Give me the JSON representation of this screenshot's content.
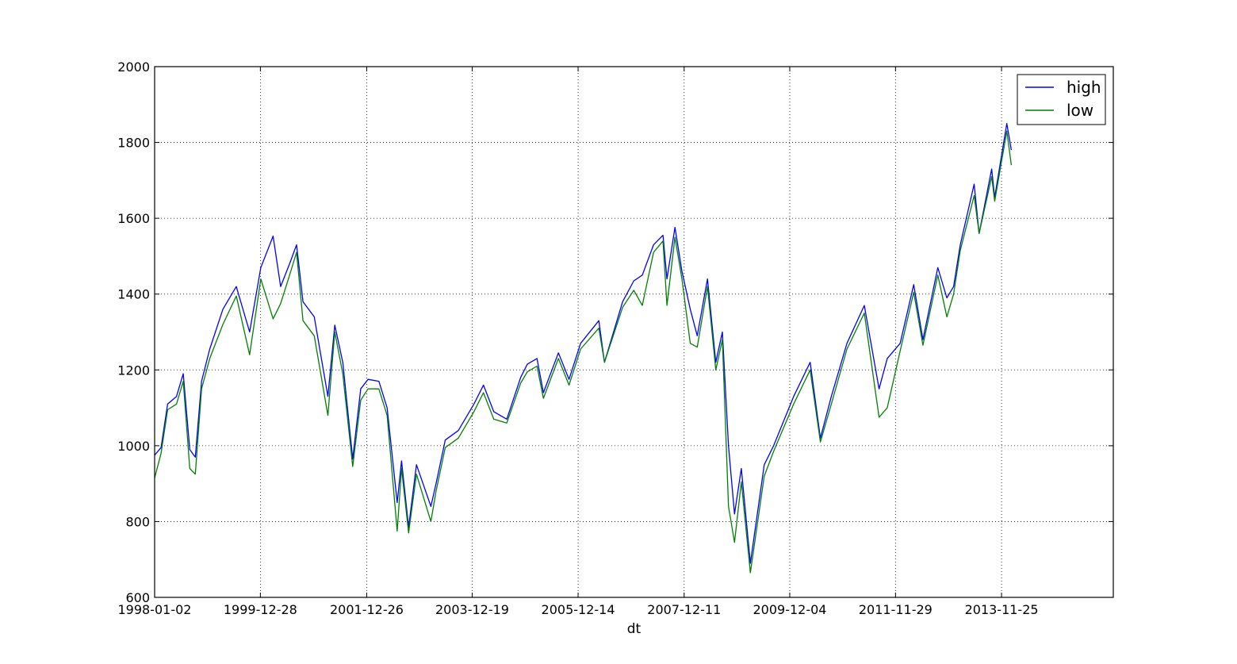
{
  "chart_data": {
    "type": "line",
    "xlabel": "dt",
    "ylabel": "",
    "title": "",
    "xlim": [
      "1998-01-02",
      "2015-12-31"
    ],
    "ylim": [
      600,
      2000
    ],
    "grid": true,
    "legend_position": "top-right",
    "x_tick_labels": [
      "1998-01-02",
      "1999-12-28",
      "2001-12-26",
      "2003-12-19",
      "2005-12-14",
      "2007-12-11",
      "2009-12-04",
      "2011-11-29",
      "2013-11-25"
    ],
    "y_ticks": [
      600,
      800,
      1000,
      1200,
      1400,
      1600,
      1800,
      2000
    ],
    "series": [
      {
        "name": "high",
        "color": "#0000ff",
        "x": [
          "1998-01-02",
          "1998-02-15",
          "1998-04-01",
          "1998-06-01",
          "1998-07-17",
          "1998-08-31",
          "1998-10-08",
          "1998-11-20",
          "1999-01-15",
          "1999-04-15",
          "1999-07-16",
          "1999-10-15",
          "1999-12-31",
          "2000-03-24",
          "2000-05-15",
          "2000-07-15",
          "2000-09-01",
          "2000-10-15",
          "2000-12-31",
          "2001-04-04",
          "2001-05-21",
          "2001-07-15",
          "2001-09-21",
          "2001-11-15",
          "2002-01-04",
          "2002-03-19",
          "2002-05-15",
          "2002-07-23",
          "2002-08-22",
          "2002-10-09",
          "2002-12-02",
          "2003-03-11",
          "2003-04-15",
          "2003-06-17",
          "2003-09-15",
          "2003-12-31",
          "2004-03-05",
          "2004-05-15",
          "2004-08-12",
          "2004-11-15",
          "2004-12-31",
          "2005-03-07",
          "2005-04-20",
          "2005-08-01",
          "2005-10-13",
          "2005-12-31",
          "2006-05-05",
          "2006-06-13",
          "2006-10-15",
          "2006-12-31",
          "2007-02-27",
          "2007-05-15",
          "2007-07-19",
          "2007-08-15",
          "2007-10-09",
          "2007-11-26",
          "2008-01-22",
          "2008-03-10",
          "2008-05-19",
          "2008-07-15",
          "2008-08-29",
          "2008-10-10",
          "2008-11-20",
          "2009-01-06",
          "2009-03-09",
          "2009-06-12",
          "2009-08-15",
          "2009-12-31",
          "2010-04-23",
          "2010-07-02",
          "2010-09-15",
          "2010-12-31",
          "2011-04-29",
          "2011-08-08",
          "2011-10-03",
          "2011-12-31",
          "2012-04-02",
          "2012-06-04",
          "2012-09-14",
          "2012-11-15",
          "2012-12-31",
          "2013-02-15",
          "2013-05-21",
          "2013-06-24",
          "2013-09-18",
          "2013-10-09",
          "2013-12-31",
          "2014-01-31"
        ],
        "values": [
          975,
          995,
          1110,
          1130,
          1190,
          990,
          970,
          1170,
          1255,
          1360,
          1420,
          1300,
          1470,
          1553,
          1420,
          1480,
          1530,
          1380,
          1340,
          1130,
          1318,
          1220,
          965,
          1150,
          1175,
          1170,
          1100,
          850,
          960,
          785,
          950,
          840,
          900,
          1015,
          1040,
          1110,
          1160,
          1090,
          1070,
          1180,
          1215,
          1230,
          1140,
          1245,
          1175,
          1270,
          1330,
          1220,
          1380,
          1435,
          1450,
          1530,
          1555,
          1440,
          1576,
          1460,
          1360,
          1290,
          1440,
          1220,
          1300,
          1000,
          820,
          940,
          690,
          950,
          1000,
          1130,
          1220,
          1020,
          1130,
          1270,
          1370,
          1150,
          1230,
          1270,
          1425,
          1280,
          1470,
          1390,
          1420,
          1530,
          1690,
          1560,
          1730,
          1655,
          1850,
          1780
        ]
      },
      {
        "name": "low",
        "color": "#008000",
        "x": [
          "1998-01-02",
          "1998-02-15",
          "1998-04-01",
          "1998-06-01",
          "1998-07-17",
          "1998-08-31",
          "1998-10-08",
          "1998-11-20",
          "1999-01-15",
          "1999-04-15",
          "1999-07-16",
          "1999-10-15",
          "1999-12-31",
          "2000-03-24",
          "2000-05-15",
          "2000-07-15",
          "2000-09-01",
          "2000-10-15",
          "2000-12-31",
          "2001-04-04",
          "2001-05-21",
          "2001-07-15",
          "2001-09-21",
          "2001-11-15",
          "2002-01-04",
          "2002-03-19",
          "2002-05-15",
          "2002-07-23",
          "2002-08-22",
          "2002-10-09",
          "2002-12-02",
          "2003-03-11",
          "2003-04-15",
          "2003-06-17",
          "2003-09-15",
          "2003-12-31",
          "2004-03-05",
          "2004-05-15",
          "2004-08-12",
          "2004-11-15",
          "2004-12-31",
          "2005-03-07",
          "2005-04-20",
          "2005-08-01",
          "2005-10-13",
          "2005-12-31",
          "2006-05-05",
          "2006-06-13",
          "2006-10-15",
          "2006-12-31",
          "2007-02-27",
          "2007-05-15",
          "2007-07-19",
          "2007-08-15",
          "2007-10-09",
          "2007-11-26",
          "2008-01-22",
          "2008-03-10",
          "2008-05-19",
          "2008-07-15",
          "2008-08-29",
          "2008-10-10",
          "2008-11-20",
          "2009-01-06",
          "2009-03-09",
          "2009-06-12",
          "2009-08-15",
          "2009-12-31",
          "2010-04-23",
          "2010-07-02",
          "2010-09-15",
          "2010-12-31",
          "2011-04-29",
          "2011-08-08",
          "2011-10-03",
          "2011-12-31",
          "2012-04-02",
          "2012-06-04",
          "2012-09-14",
          "2012-11-15",
          "2012-12-31",
          "2013-02-15",
          "2013-05-21",
          "2013-06-24",
          "2013-09-18",
          "2013-10-09",
          "2013-12-31",
          "2014-01-31"
        ],
        "values": [
          915,
          980,
          1095,
          1110,
          1170,
          940,
          925,
          1150,
          1230,
          1320,
          1395,
          1240,
          1440,
          1335,
          1375,
          1450,
          1510,
          1330,
          1290,
          1080,
          1300,
          1190,
          945,
          1120,
          1150,
          1150,
          1080,
          775,
          940,
          770,
          925,
          800,
          880,
          995,
          1020,
          1090,
          1140,
          1070,
          1060,
          1165,
          1195,
          1210,
          1125,
          1230,
          1160,
          1255,
          1310,
          1220,
          1365,
          1410,
          1370,
          1510,
          1540,
          1370,
          1550,
          1440,
          1270,
          1260,
          1420,
          1200,
          1280,
          840,
          745,
          905,
          665,
          920,
          985,
          1110,
          1200,
          1010,
          1110,
          1255,
          1350,
          1075,
          1100,
          1250,
          1405,
          1265,
          1450,
          1340,
          1400,
          1515,
          1660,
          1560,
          1710,
          1645,
          1830,
          1740
        ]
      }
    ]
  }
}
